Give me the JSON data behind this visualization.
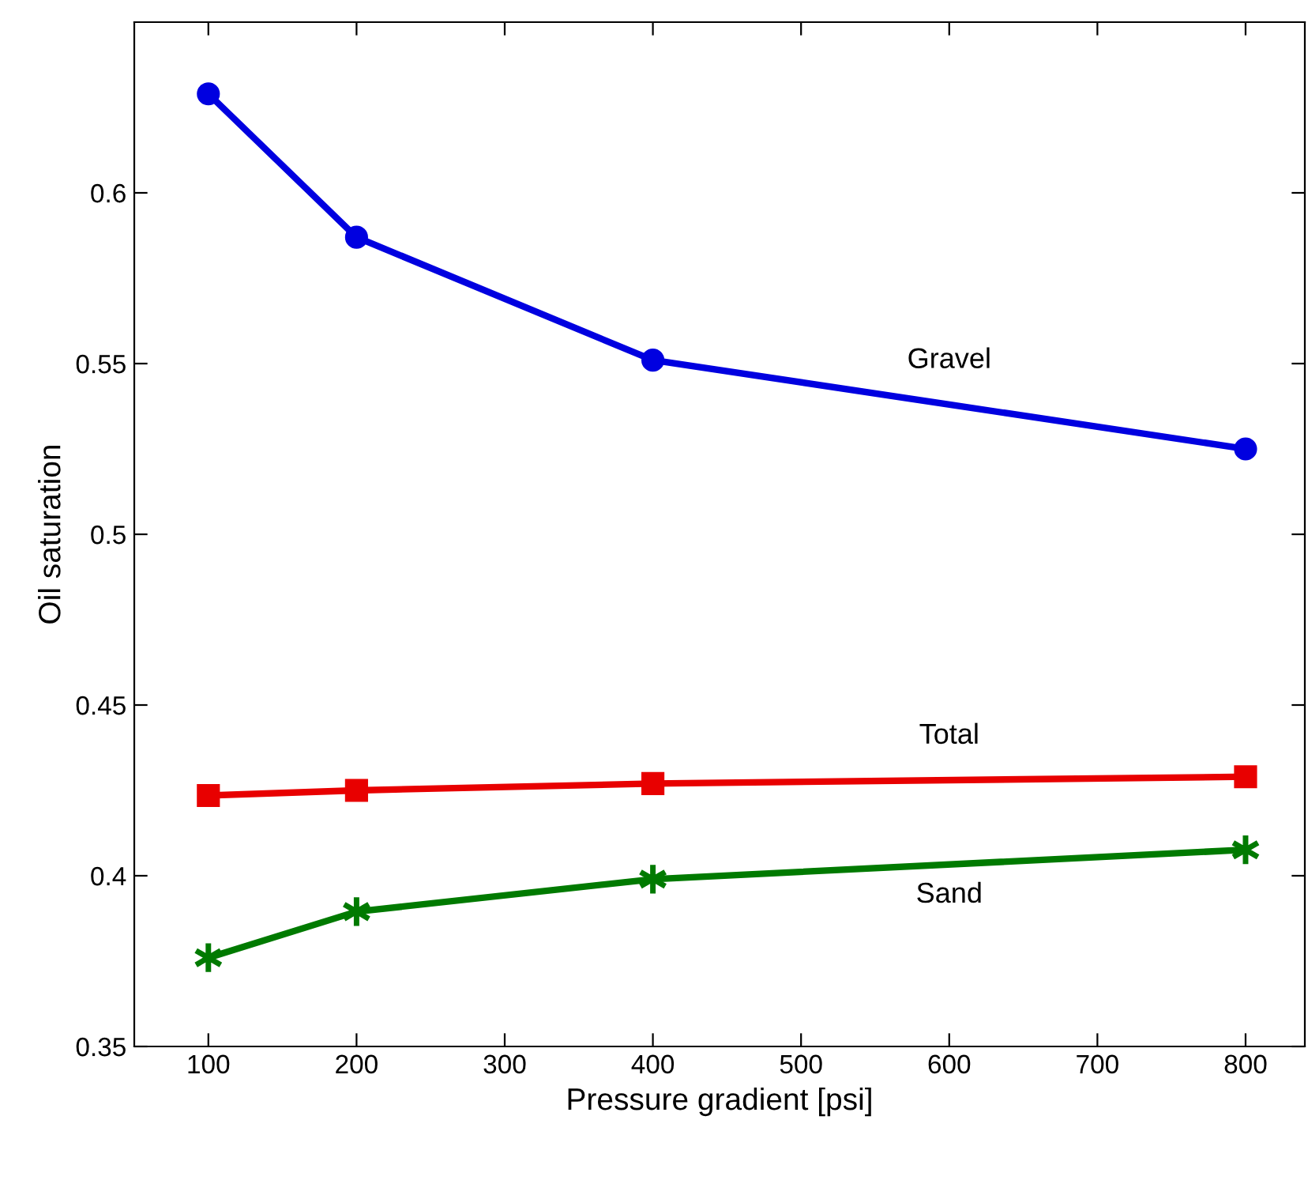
{
  "chart_data": {
    "type": "line",
    "xlabel": "Pressure gradient [psi]",
    "ylabel": "Oil saturation",
    "x": [
      100,
      200,
      400,
      800
    ],
    "series": [
      {
        "name": "Gravel",
        "color": "#0000e0",
        "marker": "circle",
        "values": [
          0.629,
          0.587,
          0.551,
          0.525
        ]
      },
      {
        "name": "Total",
        "color": "#e80000",
        "marker": "square",
        "values": [
          0.4235,
          0.425,
          0.427,
          0.429
        ]
      },
      {
        "name": "Sand",
        "color": "#007a00",
        "marker": "cross",
        "values": [
          0.376,
          0.3895,
          0.399,
          0.4076
        ]
      }
    ],
    "xlim": [
      50,
      840
    ],
    "xticks": [
      100,
      200,
      300,
      400,
      500,
      600,
      700,
      800
    ],
    "ylim": [
      0.35,
      0.65
    ],
    "yticks": [
      0.35,
      0.4,
      0.45,
      0.5,
      0.55,
      0.6
    ],
    "grid": false,
    "legend": false,
    "line_style": "solid"
  }
}
